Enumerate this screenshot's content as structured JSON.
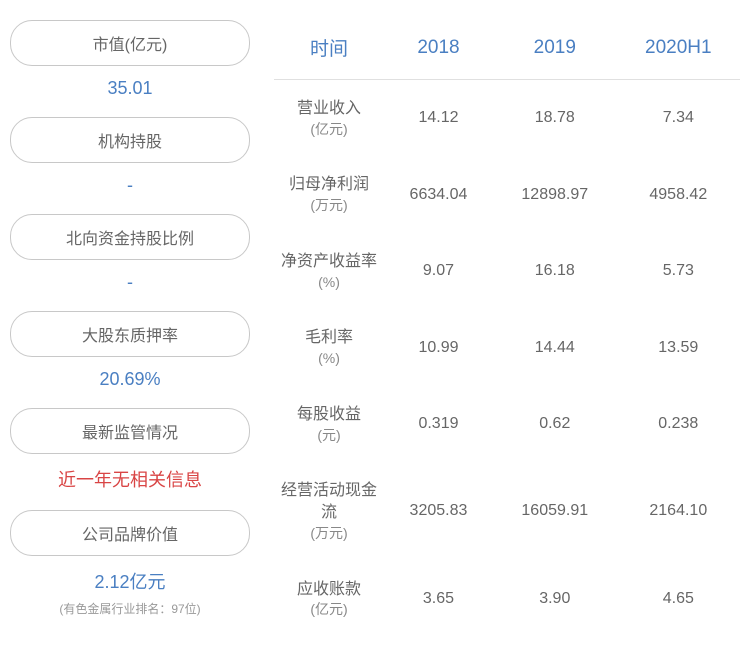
{
  "colors": {
    "accent_blue": "#4a7fc2",
    "accent_red": "#d94545",
    "text_gray": "#666666",
    "pill_border": "#c8c8c8",
    "divider": "#e0e0e0",
    "footnote": "#999999"
  },
  "leftStats": [
    {
      "label": "市值(亿元)",
      "value": "35.01",
      "value_color": "blue"
    },
    {
      "label": "机构持股",
      "value": "-",
      "value_color": "blue"
    },
    {
      "label": "北向资金持股比例",
      "value": "-",
      "value_color": "blue"
    },
    {
      "label": "大股东质押率",
      "value": "20.69%",
      "value_color": "blue"
    },
    {
      "label": "最新监管情况",
      "value": "近一年无相关信息",
      "value_color": "red"
    },
    {
      "label": "公司品牌价值",
      "value": "2.12亿元",
      "value_color": "blue",
      "footnote": "(有色金属行业排名：97位)"
    }
  ],
  "table": {
    "headers": [
      "时间",
      "2018",
      "2019",
      "2020H1"
    ],
    "rows": [
      {
        "label": "营业收入",
        "unit": "(亿元)",
        "values": [
          "14.12",
          "18.78",
          "7.34"
        ]
      },
      {
        "label": "归母净利润",
        "unit": "(万元)",
        "values": [
          "6634.04",
          "12898.97",
          "4958.42"
        ]
      },
      {
        "label": "净资产收益率",
        "unit": "(%)",
        "values": [
          "9.07",
          "16.18",
          "5.73"
        ]
      },
      {
        "label": "毛利率",
        "unit": "(%)",
        "values": [
          "10.99",
          "14.44",
          "13.59"
        ]
      },
      {
        "label": "每股收益",
        "unit": "(元)",
        "values": [
          "0.319",
          "0.62",
          "0.238"
        ]
      },
      {
        "label": "经营活动现金流",
        "unit": "(万元)",
        "values": [
          "3205.83",
          "16059.91",
          "2164.10"
        ]
      },
      {
        "label": "应收账款",
        "unit": "(亿元)",
        "values": [
          "3.65",
          "3.90",
          "4.65"
        ]
      }
    ]
  }
}
